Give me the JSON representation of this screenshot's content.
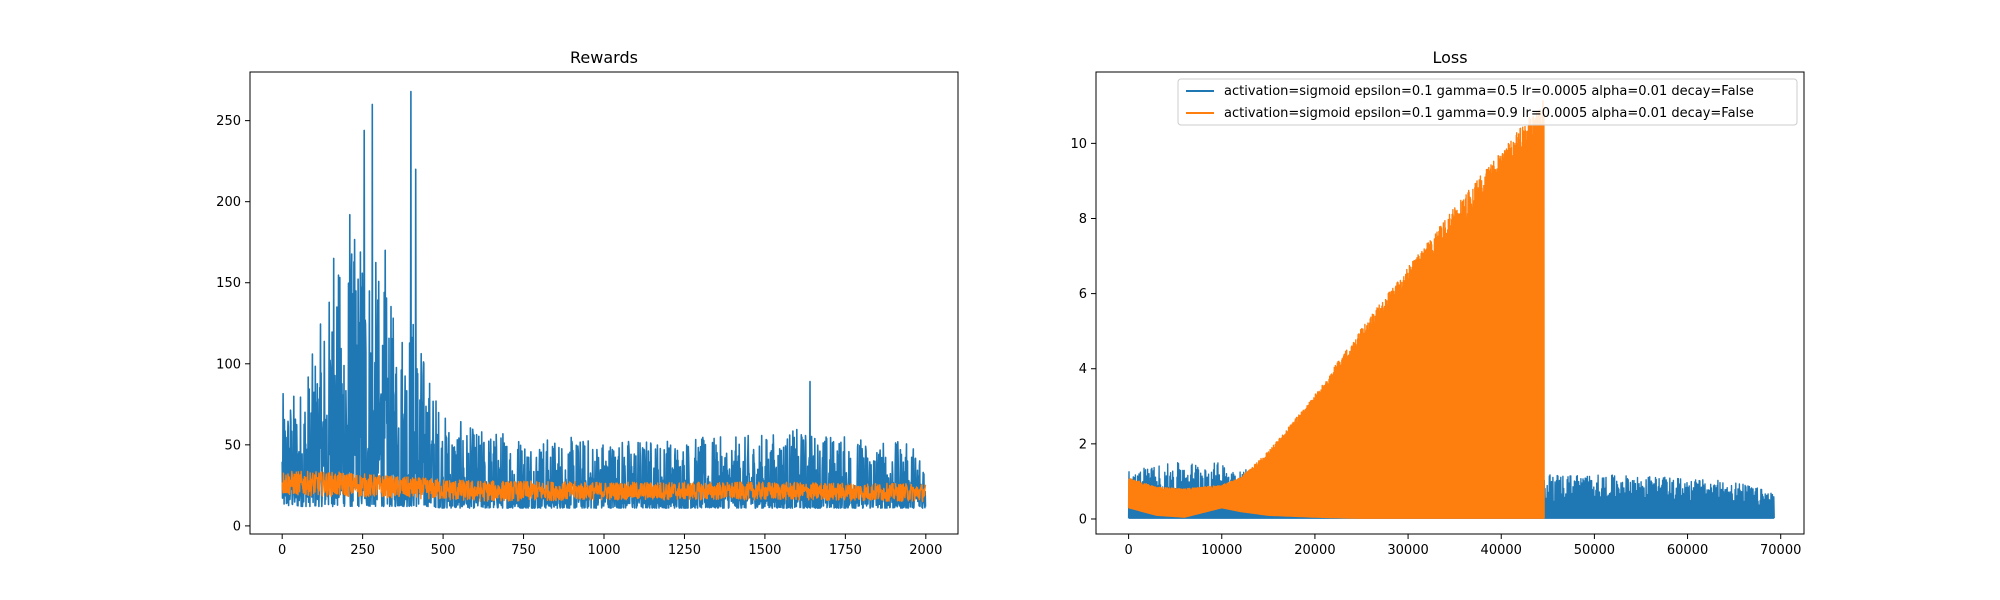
{
  "chart_data": [
    {
      "type": "line",
      "title": "Rewards",
      "xlabel": "",
      "ylabel": "",
      "xlim": [
        -100,
        2100
      ],
      "ylim": [
        -5,
        280
      ],
      "x_ticks": [
        0,
        250,
        500,
        750,
        1000,
        1250,
        1500,
        1750,
        2000
      ],
      "y_ticks": [
        0,
        50,
        100,
        150,
        200,
        250
      ],
      "grid": false,
      "legend": "none",
      "series": [
        {
          "color": "#1f77b4",
          "approx_points": 2000,
          "profile_x": [
            0,
            50,
            100,
            150,
            200,
            250,
            300,
            350,
            400,
            450,
            500,
            600,
            700,
            800,
            900,
            1000,
            1200,
            1400,
            1600,
            1800,
            2000
          ],
          "profile_low": [
            12,
            12,
            12,
            12,
            12,
            12,
            12,
            12,
            12,
            12,
            11,
            11,
            11,
            11,
            11,
            11,
            11,
            11,
            11,
            11,
            11
          ],
          "profile_high": [
            82,
            85,
            110,
            150,
            170,
            190,
            160,
            130,
            140,
            100,
            70,
            60,
            60,
            55,
            55,
            55,
            55,
            55,
            60,
            55,
            50
          ],
          "peaks": [
            {
              "x": 160,
              "y": 165
            },
            {
              "x": 210,
              "y": 192
            },
            {
              "x": 255,
              "y": 244
            },
            {
              "x": 280,
              "y": 260
            },
            {
              "x": 320,
              "y": 170
            },
            {
              "x": 400,
              "y": 268
            },
            {
              "x": 415,
              "y": 220
            },
            {
              "x": 1640,
              "y": 89
            }
          ]
        },
        {
          "color": "#ff7f0e",
          "approx_points": 2000,
          "profile_x": [
            0,
            200,
            400,
            600,
            1000,
            1500,
            2000
          ],
          "profile_low": [
            19,
            18,
            17,
            15,
            16,
            16,
            15
          ],
          "profile_high": [
            34,
            33,
            30,
            28,
            27,
            27,
            26
          ]
        }
      ]
    },
    {
      "type": "line",
      "title": "Loss",
      "xlabel": "",
      "ylabel": "",
      "xlim": [
        -3500,
        72500
      ],
      "ylim": [
        -0.4,
        11.9
      ],
      "x_ticks": [
        0,
        10000,
        20000,
        30000,
        40000,
        50000,
        60000,
        70000
      ],
      "y_ticks": [
        0,
        2,
        4,
        6,
        8,
        10
      ],
      "grid": false,
      "legend": "upper right",
      "series": [
        {
          "name": "activation=sigmoid epsilon=0.1 gamma=0.5 lr=0.0005 alpha=0.01 decay=False",
          "color": "#1f77b4",
          "x_end": 69300,
          "profile_x": [
            0,
            5000,
            10000,
            15000,
            20000,
            30000,
            40000,
            44600,
            45000,
            55000,
            65000,
            69300
          ],
          "profile_high": [
            1.3,
            1.5,
            1.5,
            1.2,
            1.0,
            0.8,
            0.9,
            1.1,
            1.2,
            1.15,
            1.0,
            0.7
          ]
        },
        {
          "name": "activation=sigmoid epsilon=0.1 gamma=0.9 lr=0.0005 alpha=0.01 decay=False",
          "color": "#ff7f0e",
          "x_end": 44600,
          "profile_x": [
            0,
            3000,
            6000,
            10000,
            12000,
            15000,
            20000,
            25000,
            30000,
            35000,
            40000,
            44000,
            44600
          ],
          "profile_low": [
            0.3,
            0.1,
            0.05,
            0.3,
            0.2,
            0.1,
            0.05,
            0.02,
            0.02,
            0.02,
            0.02,
            0.02,
            0.02
          ],
          "profile_high": [
            1.1,
            0.85,
            0.8,
            0.9,
            1.1,
            1.8,
            3.3,
            5.1,
            6.7,
            8.3,
            9.8,
            11.0,
            11.2
          ]
        }
      ]
    }
  ]
}
